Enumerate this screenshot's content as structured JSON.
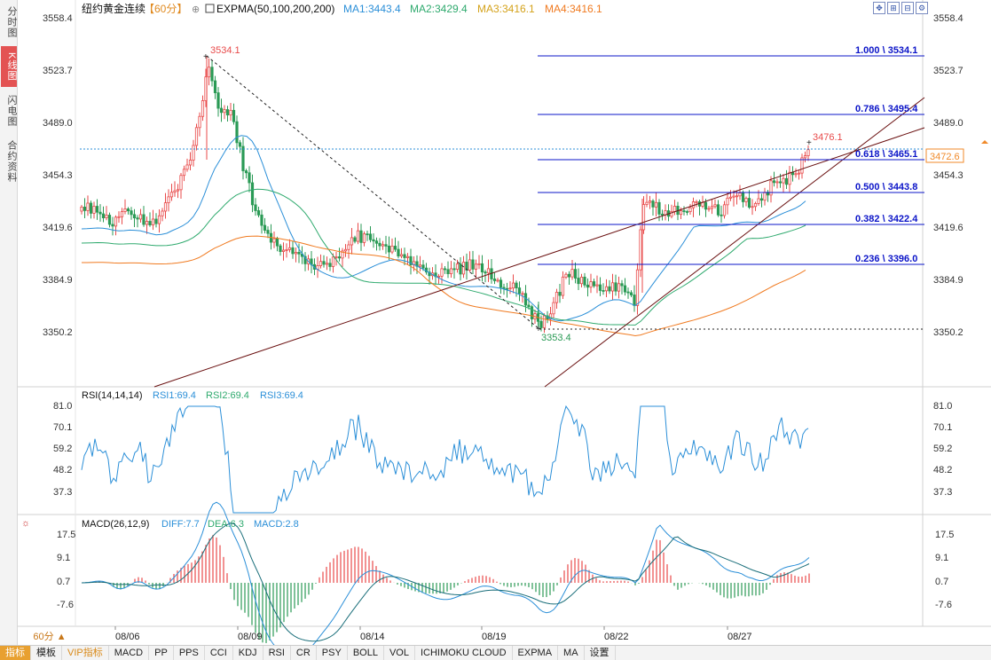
{
  "sidebar": {
    "tabs": [
      {
        "label": "分时图",
        "active": false
      },
      {
        "label": "K线图",
        "active": true
      },
      {
        "label": "闪电图",
        "active": false
      },
      {
        "label": "合约资料",
        "active": false
      }
    ]
  },
  "header": {
    "title": "纽约黄金连续",
    "period": "【60分】",
    "indicator": "EXPMA(50,100,200,200)",
    "ma1": "MA1:3443.4",
    "ma2": "MA2:3429.4",
    "ma3": "MA3:3416.1",
    "ma4": "MA4:3416.1",
    "toolbar_icons": [
      "move-icon",
      "zoom-in-icon",
      "zoom-out-icon",
      "settings-icon"
    ]
  },
  "price_axis": {
    "ticks": [
      "3558.4",
      "3523.7",
      "3489.0",
      "3454.3",
      "3419.6",
      "3384.9",
      "3350.2"
    ],
    "current_price": "3472.6"
  },
  "annotations": {
    "high_label": "3534.1",
    "low_label": "3353.4",
    "last_high_label": "3476.1"
  },
  "fibonacci": {
    "levels": [
      "1.000 \\ 3534.1",
      "0.786 \\ 3495.4",
      "0.618 \\ 3465.1",
      "0.500 \\ 3443.8",
      "0.382 \\ 3422.4",
      "0.236 \\ 3396.0"
    ]
  },
  "rsi": {
    "title": "RSI(14,14,14)",
    "rsi1": "RSI1:69.4",
    "rsi2": "RSI2:69.4",
    "rsi3": "RSI3:69.4",
    "ticks": [
      "81.0",
      "70.1",
      "59.2",
      "48.2",
      "37.3"
    ]
  },
  "macd": {
    "title": "MACD(26,12,9)",
    "diff": "DIFF:7.7",
    "dea": "DEA:6.3",
    "macd": "MACD:2.8",
    "ticks": [
      "17.5",
      "9.1",
      "0.7",
      "-7.6"
    ]
  },
  "x_axis": {
    "labels": [
      "08/06",
      "08/09",
      "08/14",
      "08/19",
      "08/22",
      "08/27"
    ]
  },
  "period_button": "60分 ▲",
  "bottom_tabs": [
    "指标",
    "模板",
    "VIP指标",
    "MACD",
    "PP",
    "PPS",
    "CCI",
    "KDJ",
    "RSI",
    "CR",
    "PSY",
    "BOLL",
    "VOL",
    "ICHIMOKU CLOUD",
    "EXPMA",
    "MA",
    "设置"
  ],
  "colors": {
    "up": "#e84a4a",
    "down": "#2a9a55",
    "ma1": "#2b8fd8",
    "ma2": "#2faa6e",
    "ma3": "#d4a21a",
    "ma4": "#f07a20",
    "fib": "#0b14c8",
    "label_high": "#e84a4a",
    "label_low": "#2a9a55",
    "current_price": "#f08a2a"
  }
}
